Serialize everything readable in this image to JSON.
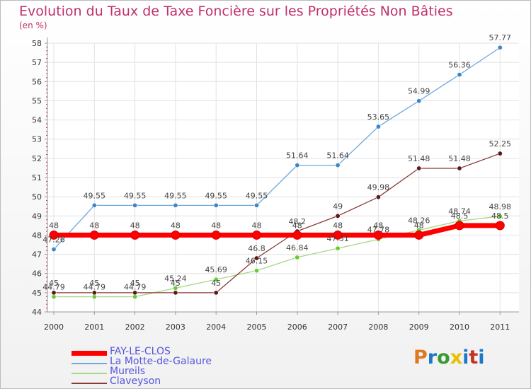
{
  "title": "Evolution du Taux de Taxe Foncière sur les Propriétés Non Bâties",
  "unit": "(en %)",
  "brand": "Proxiti",
  "brand_colors": [
    "#e07820",
    "#1e78c8",
    "#3a9a30",
    "#e8c000",
    "#1e78c8",
    "#c83020",
    "#1e78c8"
  ],
  "chart_data": {
    "type": "line",
    "x": [
      "2000",
      "2001",
      "2002",
      "2003",
      "2004",
      "2005",
      "2006",
      "2007",
      "2008",
      "2009",
      "2010",
      "2011"
    ],
    "ylim": [
      44,
      58
    ],
    "yticks": [
      "44",
      "45",
      "46",
      "47",
      "48",
      "49",
      "50",
      "51",
      "52",
      "53",
      "54",
      "55",
      "56",
      "57",
      "58"
    ],
    "grid": true,
    "legend_position": "bottom-left",
    "series": [
      {
        "name": "FAY-LE-CLOS",
        "color": "#ff0000",
        "thick": true,
        "values": [
          48,
          48,
          48,
          48,
          48,
          48,
          48,
          48,
          48,
          48,
          48.5,
          48.5
        ],
        "labels": [
          "48",
          "48",
          "48",
          "48",
          "48",
          "48",
          "48",
          "48",
          "48",
          "48",
          "48.5",
          "48.5"
        ]
      },
      {
        "name": "La Motte-de-Galaure",
        "color": "#6fa8dc",
        "marker": "#3d85c6",
        "values": [
          47.26,
          49.55,
          49.55,
          49.55,
          49.55,
          49.55,
          51.64,
          51.64,
          53.65,
          54.99,
          56.36,
          57.77
        ],
        "labels": [
          "47.26",
          "49.55",
          "49.55",
          "49.55",
          "49.55",
          "49.55",
          "51.64",
          "51.64",
          "53.65",
          "54.99",
          "56.36",
          "57.77"
        ]
      },
      {
        "name": "Mureils",
        "color": "#a6d785",
        "marker": "#66cc33",
        "values": [
          44.79,
          44.79,
          44.79,
          45.24,
          45.69,
          46.15,
          46.84,
          47.31,
          47.78,
          48.26,
          48.74,
          48.98
        ],
        "labels": [
          "44.79",
          "44.79",
          "44.79",
          "45.24",
          "45.69",
          "46.15",
          "46.84",
          "47.31",
          "47.78",
          "48.26",
          "48.74",
          "48.98"
        ]
      },
      {
        "name": "Claveyson",
        "color": "#8b3a3a",
        "marker": "#5a1a1a",
        "values": [
          45,
          45,
          45,
          45,
          45,
          46.8,
          48.2,
          49,
          49.98,
          51.48,
          51.48,
          52.25
        ],
        "labels": [
          "45",
          "45",
          "45",
          "45",
          "45",
          "46.8",
          "48.2",
          "49",
          "49.98",
          "51.48",
          "51.48",
          "52.25"
        ]
      }
    ]
  }
}
